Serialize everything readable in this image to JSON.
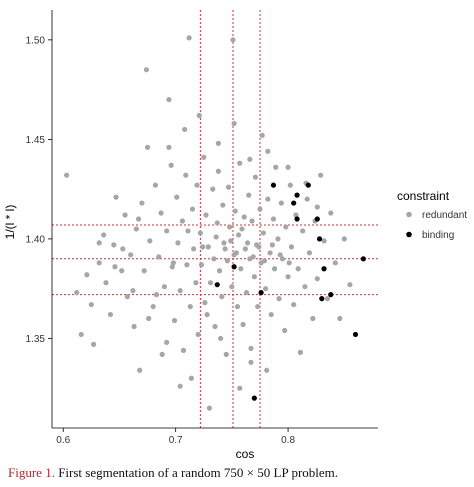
{
  "chart_data": {
    "type": "scatter",
    "xlabel": "cos",
    "ylabel": "1/(l * l)",
    "xlim": [
      0.59,
      0.88
    ],
    "ylim": [
      1.305,
      1.515
    ],
    "x_ticks": [
      {
        "value": 0.6,
        "label": "0.6"
      },
      {
        "value": 0.7,
        "label": "0.7"
      },
      {
        "value": 0.8,
        "label": "0.8"
      }
    ],
    "y_ticks": [
      {
        "value": 1.35,
        "label": "1.35"
      },
      {
        "value": 1.4,
        "label": "1.40"
      },
      {
        "value": 1.45,
        "label": "1.45"
      },
      {
        "value": 1.5,
        "label": "1.50"
      }
    ],
    "grid": false,
    "vertical_reference_lines": [
      0.722,
      0.751,
      0.775
    ],
    "horizontal_reference_lines": [
      1.372,
      1.39,
      1.407
    ],
    "reference_line_color": "#cc3333",
    "legend": {
      "title": "constraint",
      "position": "right",
      "entries": [
        {
          "label": "redundant",
          "color": "#a6a6a6"
        },
        {
          "label": "binding",
          "color": "#000000"
        }
      ]
    },
    "series": [
      {
        "name": "redundant",
        "color": "#a6a6a6",
        "points": [
          [
            0.603,
            1.432
          ],
          [
            0.612,
            1.373
          ],
          [
            0.616,
            1.352
          ],
          [
            0.621,
            1.382
          ],
          [
            0.625,
            1.367
          ],
          [
            0.627,
            1.347
          ],
          [
            0.632,
            1.388
          ],
          [
            0.636,
            1.402
          ],
          [
            0.638,
            1.378
          ],
          [
            0.642,
            1.362
          ],
          [
            0.645,
            1.397
          ],
          [
            0.647,
            1.421
          ],
          [
            0.652,
            1.384
          ],
          [
            0.655,
            1.412
          ],
          [
            0.657,
            1.371
          ],
          [
            0.66,
            1.392
          ],
          [
            0.663,
            1.356
          ],
          [
            0.665,
            1.405
          ],
          [
            0.668,
            1.334
          ],
          [
            0.67,
            1.418
          ],
          [
            0.672,
            1.384
          ],
          [
            0.674,
            1.485
          ],
          [
            0.675,
            1.446
          ],
          [
            0.677,
            1.399
          ],
          [
            0.68,
            1.366
          ],
          [
            0.682,
            1.427
          ],
          [
            0.685,
            1.391
          ],
          [
            0.687,
            1.413
          ],
          [
            0.688,
            1.342
          ],
          [
            0.69,
            1.376
          ],
          [
            0.692,
            1.404
          ],
          [
            0.694,
            1.47
          ],
          [
            0.696,
            1.437
          ],
          [
            0.697,
            1.386
          ],
          [
            0.699,
            1.359
          ],
          [
            0.701,
            1.421
          ],
          [
            0.702,
            1.398
          ],
          [
            0.704,
            1.374
          ],
          [
            0.706,
            1.409
          ],
          [
            0.707,
            1.344
          ],
          [
            0.709,
            1.432
          ],
          [
            0.71,
            1.387
          ],
          [
            0.712,
            1.501
          ],
          [
            0.713,
            1.366
          ],
          [
            0.715,
            1.415
          ],
          [
            0.716,
            1.395
          ],
          [
            0.718,
            1.378
          ],
          [
            0.719,
            1.427
          ],
          [
            0.72,
            1.352
          ],
          [
            0.722,
            1.403
          ],
          [
            0.723,
            1.387
          ],
          [
            0.725,
            1.441
          ],
          [
            0.726,
            1.368
          ],
          [
            0.727,
            1.412
          ],
          [
            0.729,
            1.396
          ],
          [
            0.73,
            1.315
          ],
          [
            0.731,
            1.378
          ],
          [
            0.733,
            1.425
          ],
          [
            0.734,
            1.39
          ],
          [
            0.735,
            1.356
          ],
          [
            0.737,
            1.408
          ],
          [
            0.738,
            1.434
          ],
          [
            0.739,
            1.384
          ],
          [
            0.741,
            1.371
          ],
          [
            0.742,
            1.417
          ],
          [
            0.743,
            1.398
          ],
          [
            0.745,
            1.342
          ],
          [
            0.746,
            1.389
          ],
          [
            0.747,
            1.426
          ],
          [
            0.748,
            1.406
          ],
          [
            0.75,
            1.376
          ],
          [
            0.751,
            1.5
          ],
          [
            0.752,
            1.392
          ],
          [
            0.753,
            1.414
          ],
          [
            0.755,
            1.366
          ],
          [
            0.756,
            1.402
          ],
          [
            0.757,
            1.438
          ],
          [
            0.758,
            1.385
          ],
          [
            0.76,
            1.357
          ],
          [
            0.761,
            1.411
          ],
          [
            0.762,
            1.395
          ],
          [
            0.763,
            1.373
          ],
          [
            0.765,
            1.422
          ],
          [
            0.766,
            1.39
          ],
          [
            0.767,
            1.345
          ],
          [
            0.768,
            1.409
          ],
          [
            0.77,
            1.381
          ],
          [
            0.771,
            1.431
          ],
          [
            0.772,
            1.397
          ],
          [
            0.773,
            1.366
          ],
          [
            0.775,
            1.415
          ],
          [
            0.776,
            1.388
          ],
          [
            0.777,
            1.452
          ],
          [
            0.778,
            1.403
          ],
          [
            0.78,
            1.375
          ],
          [
            0.781,
            1.334
          ],
          [
            0.782,
            1.42
          ],
          [
            0.784,
            1.393
          ],
          [
            0.785,
            1.362
          ],
          [
            0.787,
            1.41
          ],
          [
            0.788,
            1.385
          ],
          [
            0.789,
            1.436
          ],
          [
            0.791,
            1.4
          ],
          [
            0.792,
            1.37
          ],
          [
            0.794,
            1.418
          ],
          [
            0.795,
            1.39
          ],
          [
            0.797,
            1.354
          ],
          [
            0.798,
            1.406
          ],
          [
            0.8,
            1.381
          ],
          [
            0.802,
            1.427
          ],
          [
            0.803,
            1.396
          ],
          [
            0.805,
            1.367
          ],
          [
            0.807,
            1.412
          ],
          [
            0.809,
            1.385
          ],
          [
            0.811,
            1.343
          ],
          [
            0.813,
            1.404
          ],
          [
            0.815,
            1.376
          ],
          [
            0.817,
            1.42
          ],
          [
            0.819,
            1.393
          ],
          [
            0.822,
            1.36
          ],
          [
            0.824,
            1.409
          ],
          [
            0.826,
            1.38
          ],
          [
            0.829,
            1.432
          ],
          [
            0.832,
            1.399
          ],
          [
            0.835,
            1.37
          ],
          [
            0.838,
            1.413
          ],
          [
            0.842,
            1.388
          ],
          [
            0.846,
            1.36
          ],
          [
            0.85,
            1.4
          ],
          [
            0.855,
            1.377
          ],
          [
            0.653,
            1.395
          ],
          [
            0.667,
            1.41
          ],
          [
            0.683,
            1.372
          ],
          [
            0.698,
            1.388
          ],
          [
            0.711,
            1.404
          ],
          [
            0.724,
            1.396
          ],
          [
            0.736,
            1.401
          ],
          [
            0.744,
            1.395
          ],
          [
            0.749,
            1.399
          ],
          [
            0.754,
            1.393
          ],
          [
            0.759,
            1.405
          ],
          [
            0.764,
            1.398
          ],
          [
            0.769,
            1.391
          ],
          [
            0.774,
            1.396
          ],
          [
            0.779,
            1.389
          ],
          [
            0.786,
            1.397
          ],
          [
            0.793,
            1.392
          ],
          [
            0.801,
            1.388
          ],
          [
            0.714,
            1.33
          ],
          [
            0.728,
            1.362
          ],
          [
            0.74,
            1.35
          ],
          [
            0.757,
            1.325
          ],
          [
            0.767,
            1.338
          ],
          [
            0.704,
            1.326
          ],
          [
            0.692,
            1.348
          ],
          [
            0.676,
            1.36
          ],
          [
            0.662,
            1.374
          ],
          [
            0.646,
            1.386
          ],
          [
            0.632,
            1.398
          ],
          [
            0.694,
            1.446
          ],
          [
            0.708,
            1.455
          ],
          [
            0.721,
            1.462
          ],
          [
            0.738,
            1.448
          ],
          [
            0.752,
            1.458
          ],
          [
            0.766,
            1.44
          ],
          [
            0.782,
            1.444
          ],
          [
            0.8,
            1.436
          ],
          [
            0.816,
            1.428
          ],
          [
            0.826,
            1.416
          ]
        ]
      },
      {
        "name": "binding",
        "color": "#000000",
        "points": [
          [
            0.737,
            1.377
          ],
          [
            0.752,
            1.386
          ],
          [
            0.77,
            1.32
          ],
          [
            0.776,
            1.373
          ],
          [
            0.787,
            1.427
          ],
          [
            0.805,
            1.418
          ],
          [
            0.808,
            1.41
          ],
          [
            0.808,
            1.422
          ],
          [
            0.818,
            1.427
          ],
          [
            0.826,
            1.41
          ],
          [
            0.828,
            1.4
          ],
          [
            0.83,
            1.37
          ],
          [
            0.832,
            1.385
          ],
          [
            0.838,
            1.372
          ],
          [
            0.86,
            1.352
          ],
          [
            0.867,
            1.39
          ]
        ]
      }
    ]
  },
  "caption": {
    "label": "Figure 1.",
    "text": " First segmentation of a random 750 × 50 LP problem."
  }
}
